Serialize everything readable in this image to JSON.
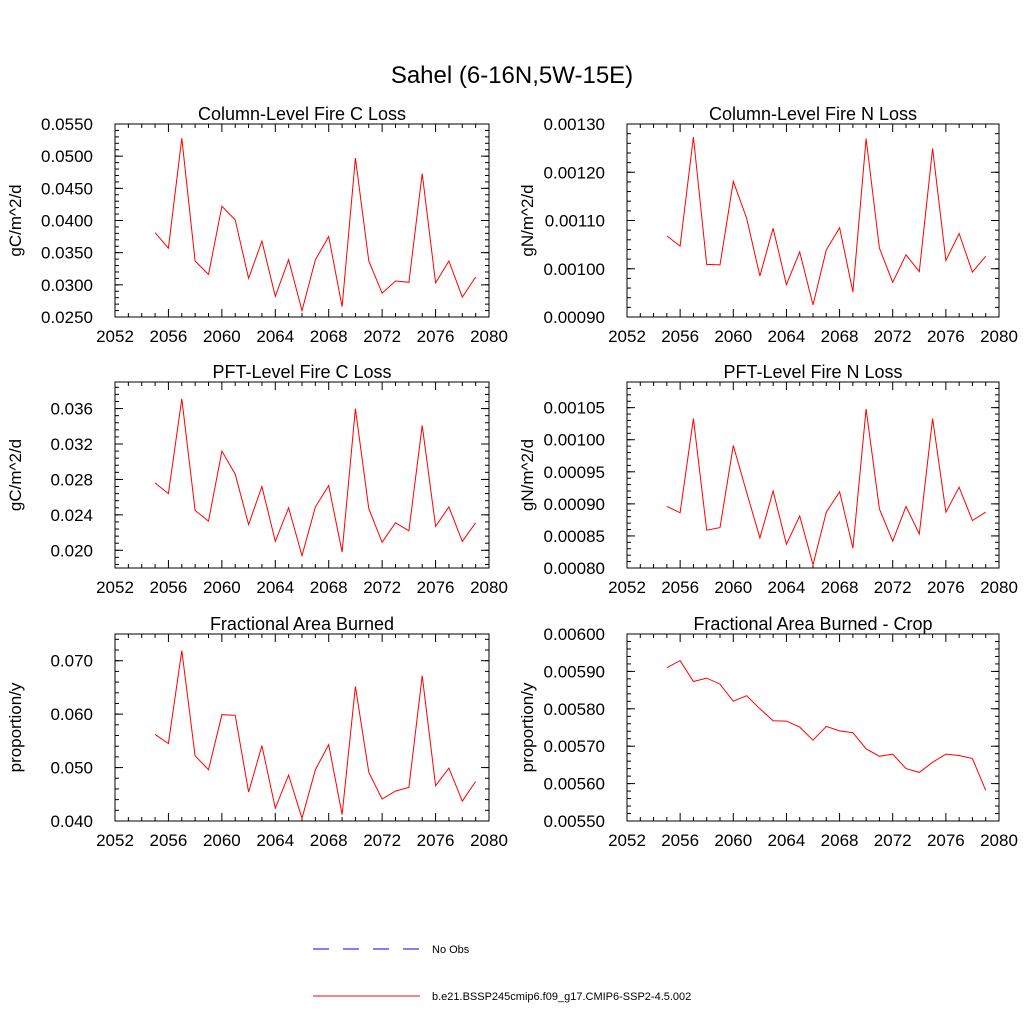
{
  "page": {
    "title": "Sahel (6-16N,5W-15E)"
  },
  "colors": {
    "model_line": "#ff0000",
    "obs_line": "#0000ff",
    "axis": "#000000"
  },
  "legend": {
    "items": [
      {
        "label": "No Obs",
        "color": "#0000ff",
        "style": "dashed"
      },
      {
        "label": "b.e21.BSSP245cmip6.f09_g17.CMIP6-SSP2-4.5.002",
        "color": "#ff0000",
        "style": "solid"
      }
    ]
  },
  "chart_data": [
    {
      "type": "line",
      "title": "Column-Level Fire C Loss",
      "xlabel": "",
      "ylabel": "gC/m^2/d",
      "xlim": [
        2052,
        2080
      ],
      "ylim": [
        0.025,
        0.055
      ],
      "xticks": [
        2052,
        2056,
        2060,
        2064,
        2068,
        2072,
        2076,
        2080
      ],
      "xtick_labels": [
        "2052",
        "2056",
        "2060",
        "2064",
        "2068",
        "2072",
        "2076",
        "2080"
      ],
      "yticks": [
        0.025,
        0.03,
        0.035,
        0.04,
        0.045,
        0.05,
        0.055
      ],
      "ytick_labels": [
        "0.0250",
        "0.0300",
        "0.0350",
        "0.0400",
        "0.0450",
        "0.0500",
        "0.0550"
      ],
      "x": [
        2055,
        2056,
        2057,
        2058,
        2059,
        2060,
        2061,
        2062,
        2063,
        2064,
        2065,
        2066,
        2067,
        2068,
        2069,
        2070,
        2071,
        2072,
        2073,
        2074,
        2075,
        2076,
        2077,
        2078,
        2079
      ],
      "series": [
        {
          "name": "b.e21.BSSP245cmip6.f09_g17.CMIP6-SSP2-4.5.002",
          "values": [
            0.0381,
            0.0357,
            0.0528,
            0.0337,
            0.0316,
            0.0422,
            0.0401,
            0.031,
            0.0368,
            0.0282,
            0.0339,
            0.026,
            0.0339,
            0.0375,
            0.0266,
            0.0497,
            0.0337,
            0.0287,
            0.0306,
            0.0304,
            0.0473,
            0.0303,
            0.0337,
            0.0281,
            0.0312
          ]
        }
      ]
    },
    {
      "type": "line",
      "title": "Column-Level Fire N Loss",
      "xlabel": "",
      "ylabel": "gN/m^2/d",
      "xlim": [
        2052,
        2080
      ],
      "ylim": [
        0.0009,
        0.0013
      ],
      "xticks": [
        2052,
        2056,
        2060,
        2064,
        2068,
        2072,
        2076,
        2080
      ],
      "xtick_labels": [
        "2052",
        "2056",
        "2060",
        "2064",
        "2068",
        "2072",
        "2076",
        "2080"
      ],
      "yticks": [
        0.0009,
        0.001,
        0.0011,
        0.0012,
        0.0013
      ],
      "ytick_labels": [
        "0.00090",
        "0.00100",
        "0.00110",
        "0.00120",
        "0.00130"
      ],
      "x": [
        2055,
        2056,
        2057,
        2058,
        2059,
        2060,
        2061,
        2062,
        2063,
        2064,
        2065,
        2066,
        2067,
        2068,
        2069,
        2070,
        2071,
        2072,
        2073,
        2074,
        2075,
        2076,
        2077,
        2078,
        2079
      ],
      "series": [
        {
          "name": "b.e21.BSSP245cmip6.f09_g17.CMIP6-SSP2-4.5.002",
          "values": [
            0.001068,
            0.001047,
            0.001273,
            0.001009,
            0.001008,
            0.001181,
            0.001105,
            0.000985,
            0.001084,
            0.000967,
            0.001035,
            0.000925,
            0.001039,
            0.001085,
            0.000952,
            0.00127,
            0.001043,
            0.000972,
            0.001029,
            0.000994,
            0.001249,
            0.001017,
            0.001073,
            0.000993,
            0.001026
          ]
        }
      ]
    },
    {
      "type": "line",
      "title": "PFT-Level Fire C Loss",
      "xlabel": "",
      "ylabel": "gC/m^2/d",
      "xlim": [
        2052,
        2080
      ],
      "ylim": [
        0.018,
        0.039
      ],
      "xticks": [
        2052,
        2056,
        2060,
        2064,
        2068,
        2072,
        2076,
        2080
      ],
      "xtick_labels": [
        "2052",
        "2056",
        "2060",
        "2064",
        "2068",
        "2072",
        "2076",
        "2080"
      ],
      "yticks": [
        0.02,
        0.024,
        0.028,
        0.032,
        0.036
      ],
      "ytick_labels": [
        "0.020",
        "0.024",
        "0.028",
        "0.032",
        "0.036"
      ],
      "x": [
        2055,
        2056,
        2057,
        2058,
        2059,
        2060,
        2061,
        2062,
        2063,
        2064,
        2065,
        2066,
        2067,
        2068,
        2069,
        2070,
        2071,
        2072,
        2073,
        2074,
        2075,
        2076,
        2077,
        2078,
        2079
      ],
      "series": [
        {
          "name": "b.e21.BSSP245cmip6.f09_g17.CMIP6-SSP2-4.5.002",
          "values": [
            0.0276,
            0.0264,
            0.0371,
            0.0245,
            0.0233,
            0.0312,
            0.0286,
            0.0229,
            0.0272,
            0.021,
            0.0248,
            0.0194,
            0.0249,
            0.0273,
            0.0198,
            0.036,
            0.0247,
            0.0209,
            0.0231,
            0.0222,
            0.0341,
            0.0227,
            0.0249,
            0.021,
            0.0231
          ]
        }
      ]
    },
    {
      "type": "line",
      "title": "PFT-Level Fire N Loss",
      "xlabel": "",
      "ylabel": "gN/m^2/d",
      "xlim": [
        2052,
        2080
      ],
      "ylim": [
        0.0008,
        0.00109
      ],
      "xticks": [
        2052,
        2056,
        2060,
        2064,
        2068,
        2072,
        2076,
        2080
      ],
      "xtick_labels": [
        "2052",
        "2056",
        "2060",
        "2064",
        "2068",
        "2072",
        "2076",
        "2080"
      ],
      "yticks": [
        0.0008,
        0.00085,
        0.0009,
        0.00095,
        0.001,
        0.00105
      ],
      "ytick_labels": [
        "0.00080",
        "0.00085",
        "0.00090",
        "0.00095",
        "0.00100",
        "0.00105"
      ],
      "x": [
        2055,
        2056,
        2057,
        2058,
        2059,
        2060,
        2061,
        2062,
        2063,
        2064,
        2065,
        2066,
        2067,
        2068,
        2069,
        2070,
        2071,
        2072,
        2073,
        2074,
        2075,
        2076,
        2077,
        2078,
        2079
      ],
      "series": [
        {
          "name": "b.e21.BSSP245cmip6.f09_g17.CMIP6-SSP2-4.5.002",
          "values": [
            0.000896,
            0.000886,
            0.001033,
            0.000859,
            0.000863,
            0.000991,
            0.000918,
            0.000847,
            0.00092,
            0.000837,
            0.000881,
            0.000805,
            0.000887,
            0.000919,
            0.000831,
            0.001048,
            0.000892,
            0.000842,
            0.000896,
            0.000853,
            0.001033,
            0.000887,
            0.000926,
            0.000874,
            0.000887
          ]
        }
      ]
    },
    {
      "type": "line",
      "title": "Fractional Area Burned",
      "xlabel": "",
      "ylabel": "proportion/y",
      "xlim": [
        2052,
        2080
      ],
      "ylim": [
        0.04,
        0.075
      ],
      "xticks": [
        2052,
        2056,
        2060,
        2064,
        2068,
        2072,
        2076,
        2080
      ],
      "xtick_labels": [
        "2052",
        "2056",
        "2060",
        "2064",
        "2068",
        "2072",
        "2076",
        "2080"
      ],
      "yticks": [
        0.04,
        0.05,
        0.06,
        0.07
      ],
      "ytick_labels": [
        "0.040",
        "0.050",
        "0.060",
        "0.070"
      ],
      "x": [
        2055,
        2056,
        2057,
        2058,
        2059,
        2060,
        2061,
        2062,
        2063,
        2064,
        2065,
        2066,
        2067,
        2068,
        2069,
        2070,
        2071,
        2072,
        2073,
        2074,
        2075,
        2076,
        2077,
        2078,
        2079
      ],
      "series": [
        {
          "name": "b.e21.BSSP245cmip6.f09_g17.CMIP6-SSP2-4.5.002",
          "values": [
            0.0562,
            0.0545,
            0.0719,
            0.0522,
            0.0496,
            0.0599,
            0.0598,
            0.0454,
            0.0541,
            0.0424,
            0.0486,
            0.0405,
            0.0496,
            0.0543,
            0.0412,
            0.0652,
            0.0491,
            0.0441,
            0.0456,
            0.0463,
            0.0672,
            0.0466,
            0.0499,
            0.0437,
            0.0474
          ]
        }
      ]
    },
    {
      "type": "line",
      "title": "Fractional Area Burned - Crop",
      "xlabel": "",
      "ylabel": "proportion/y",
      "xlim": [
        2052,
        2080
      ],
      "ylim": [
        0.0055,
        0.006
      ],
      "xticks": [
        2052,
        2056,
        2060,
        2064,
        2068,
        2072,
        2076,
        2080
      ],
      "xtick_labels": [
        "2052",
        "2056",
        "2060",
        "2064",
        "2068",
        "2072",
        "2076",
        "2080"
      ],
      "yticks": [
        0.0055,
        0.0056,
        0.0057,
        0.0058,
        0.0059,
        0.006
      ],
      "ytick_labels": [
        "0.00550",
        "0.00560",
        "0.00570",
        "0.00580",
        "0.00590",
        "0.00600"
      ],
      "x": [
        2055,
        2056,
        2057,
        2058,
        2059,
        2060,
        2061,
        2062,
        2063,
        2064,
        2065,
        2066,
        2067,
        2068,
        2069,
        2070,
        2071,
        2072,
        2073,
        2074,
        2075,
        2076,
        2077,
        2078,
        2079
      ],
      "series": [
        {
          "name": "b.e21.BSSP245cmip6.f09_g17.CMIP6-SSP2-4.5.002",
          "values": [
            0.00591,
            0.005929,
            0.005873,
            0.005882,
            0.005866,
            0.00582,
            0.005835,
            0.0058,
            0.005768,
            0.005767,
            0.005751,
            0.005716,
            0.005753,
            0.005741,
            0.005736,
            0.005693,
            0.005673,
            0.005679,
            0.00564,
            0.00563,
            0.005657,
            0.005679,
            0.005675,
            0.005667,
            0.005582
          ]
        }
      ]
    }
  ]
}
